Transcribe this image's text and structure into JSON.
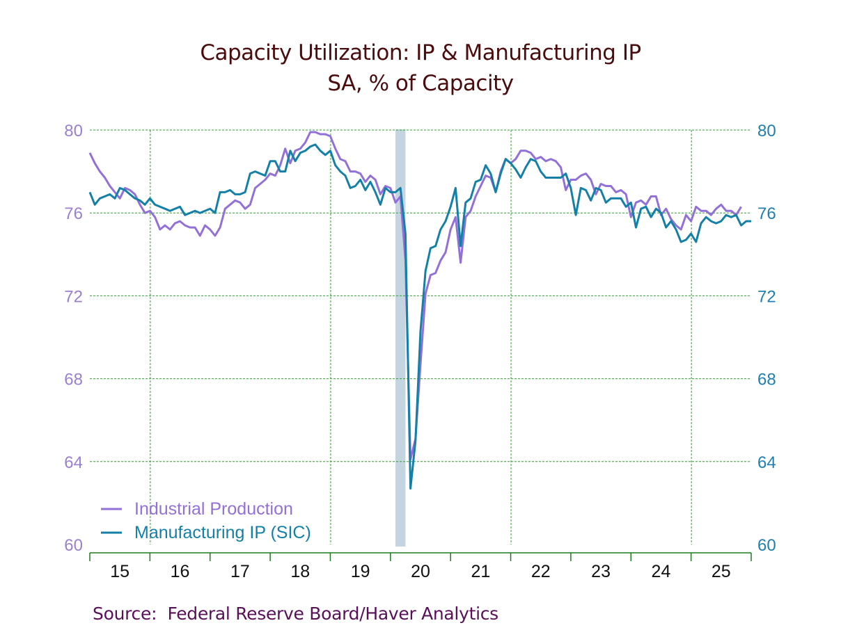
{
  "title": "Capacity Utilization: IP & Manufacturing IP",
  "subtitle": "SA, % of Capacity",
  "source": "Source:  Federal Reserve Board/Haver Analytics",
  "colors": {
    "ip": "#9370d8",
    "mfg": "#1480a8",
    "grid": "#2ea02e",
    "axis": "#1e7a1e",
    "recession": "#c5d5e0",
    "title": "#4a0c0c",
    "left_axis_labels": "#9a80d0",
    "right_axis_labels": "#1f7fb0"
  },
  "chart_data": {
    "type": "line",
    "title": "Capacity Utilization: IP & Manufacturing IP",
    "subtitle": "SA, % of Capacity",
    "xlabel": "",
    "ylabel_left": "",
    "ylabel_right": "",
    "frequency": "monthly",
    "start": "2015-01",
    "xlim": [
      "2015-01",
      "2026-01"
    ],
    "ylim": [
      60,
      80
    ],
    "y_ticks": [
      "80",
      "76",
      "72",
      "68",
      "64",
      "60"
    ],
    "y_tick_values": [
      80,
      76,
      72,
      68,
      64,
      60
    ],
    "x_tick_labels": [
      "15",
      "16",
      "17",
      "18",
      "19",
      "20",
      "21",
      "22",
      "23",
      "24",
      "25"
    ],
    "grid": true,
    "legend": "bottom-left",
    "recession_shading": [
      {
        "start": "2020-02",
        "end": "2020-04"
      }
    ],
    "series": [
      {
        "name": "Industrial Production",
        "axis": "left",
        "values": [
          78.9,
          78.4,
          78.0,
          77.7,
          77.3,
          77.0,
          76.7,
          77.2,
          77.1,
          76.9,
          76.4,
          76.0,
          76.1,
          75.8,
          75.2,
          75.4,
          75.2,
          75.5,
          75.6,
          75.4,
          75.3,
          75.3,
          74.9,
          75.4,
          75.2,
          74.9,
          75.3,
          76.2,
          76.4,
          76.6,
          76.5,
          76.2,
          76.4,
          77.2,
          77.4,
          77.6,
          77.9,
          77.8,
          78.3,
          79.1,
          78.4,
          79.0,
          79.1,
          79.4,
          79.9,
          79.9,
          79.8,
          79.8,
          79.7,
          79.1,
          78.6,
          78.5,
          78.0,
          78.0,
          77.9,
          77.5,
          77.8,
          77.6,
          76.9,
          77.3,
          77.2,
          76.5,
          76.8,
          73.7,
          64.1,
          65.1,
          68.7,
          72.1,
          73.0,
          73.1,
          73.7,
          74.1,
          75.2,
          75.8,
          73.6,
          75.8,
          76.1,
          76.8,
          77.3,
          77.8,
          77.7,
          77.0,
          78.0,
          78.6,
          78.4,
          78.6,
          79.0,
          79.0,
          78.9,
          78.6,
          78.7,
          78.5,
          78.6,
          78.5,
          78.2,
          77.1,
          77.6,
          77.6,
          77.8,
          77.9,
          77.6,
          76.9,
          77.4,
          77.3,
          77.3,
          77.0,
          77.1,
          76.9,
          75.8,
          76.5,
          76.6,
          76.4,
          76.8,
          76.8,
          75.9,
          76.2,
          75.7,
          75.4,
          75.2,
          75.9,
          75.6,
          76.3,
          76.1,
          76.1,
          75.9,
          76.2,
          76.4,
          76.1,
          76.1,
          75.9,
          76.3
        ]
      },
      {
        "name": "Manufacturing IP (SIC)",
        "axis": "right",
        "values": [
          77.0,
          76.4,
          76.7,
          76.8,
          76.9,
          76.7,
          77.2,
          77.1,
          76.9,
          76.7,
          76.6,
          76.4,
          76.7,
          76.4,
          76.3,
          76.2,
          76.1,
          76.2,
          76.3,
          75.9,
          76.0,
          76.1,
          76.0,
          76.1,
          76.2,
          76.0,
          77.0,
          77.0,
          77.1,
          76.9,
          76.9,
          77.0,
          77.9,
          78.0,
          77.9,
          77.8,
          78.5,
          78.5,
          78.0,
          78.0,
          79.0,
          78.5,
          78.9,
          79.0,
          79.2,
          79.3,
          79.0,
          78.8,
          79.0,
          78.3,
          78.0,
          77.8,
          77.2,
          77.3,
          77.6,
          77.1,
          77.5,
          77.0,
          76.4,
          77.2,
          77.0,
          77.0,
          77.2,
          75.0,
          62.7,
          65.0,
          70.3,
          73.2,
          74.3,
          74.4,
          75.2,
          75.6,
          76.3,
          77.2,
          74.4,
          76.5,
          76.7,
          77.5,
          77.6,
          78.3,
          77.9,
          77.0,
          77.9,
          78.6,
          78.4,
          78.1,
          77.7,
          78.2,
          78.6,
          78.5,
          78.0,
          77.7,
          77.7,
          77.7,
          77.7,
          77.9,
          77.2,
          75.9,
          77.2,
          77.1,
          76.6,
          77.2,
          77.1,
          76.5,
          76.7,
          76.7,
          76.7,
          76.3,
          76.5,
          75.3,
          76.2,
          76.3,
          75.8,
          76.2,
          76.0,
          75.3,
          75.6,
          75.2,
          74.6,
          74.7,
          75.0,
          74.6,
          75.5,
          75.8,
          75.6,
          75.5,
          75.6,
          75.9,
          75.8,
          75.9,
          75.4,
          75.6,
          75.6
        ]
      }
    ]
  }
}
